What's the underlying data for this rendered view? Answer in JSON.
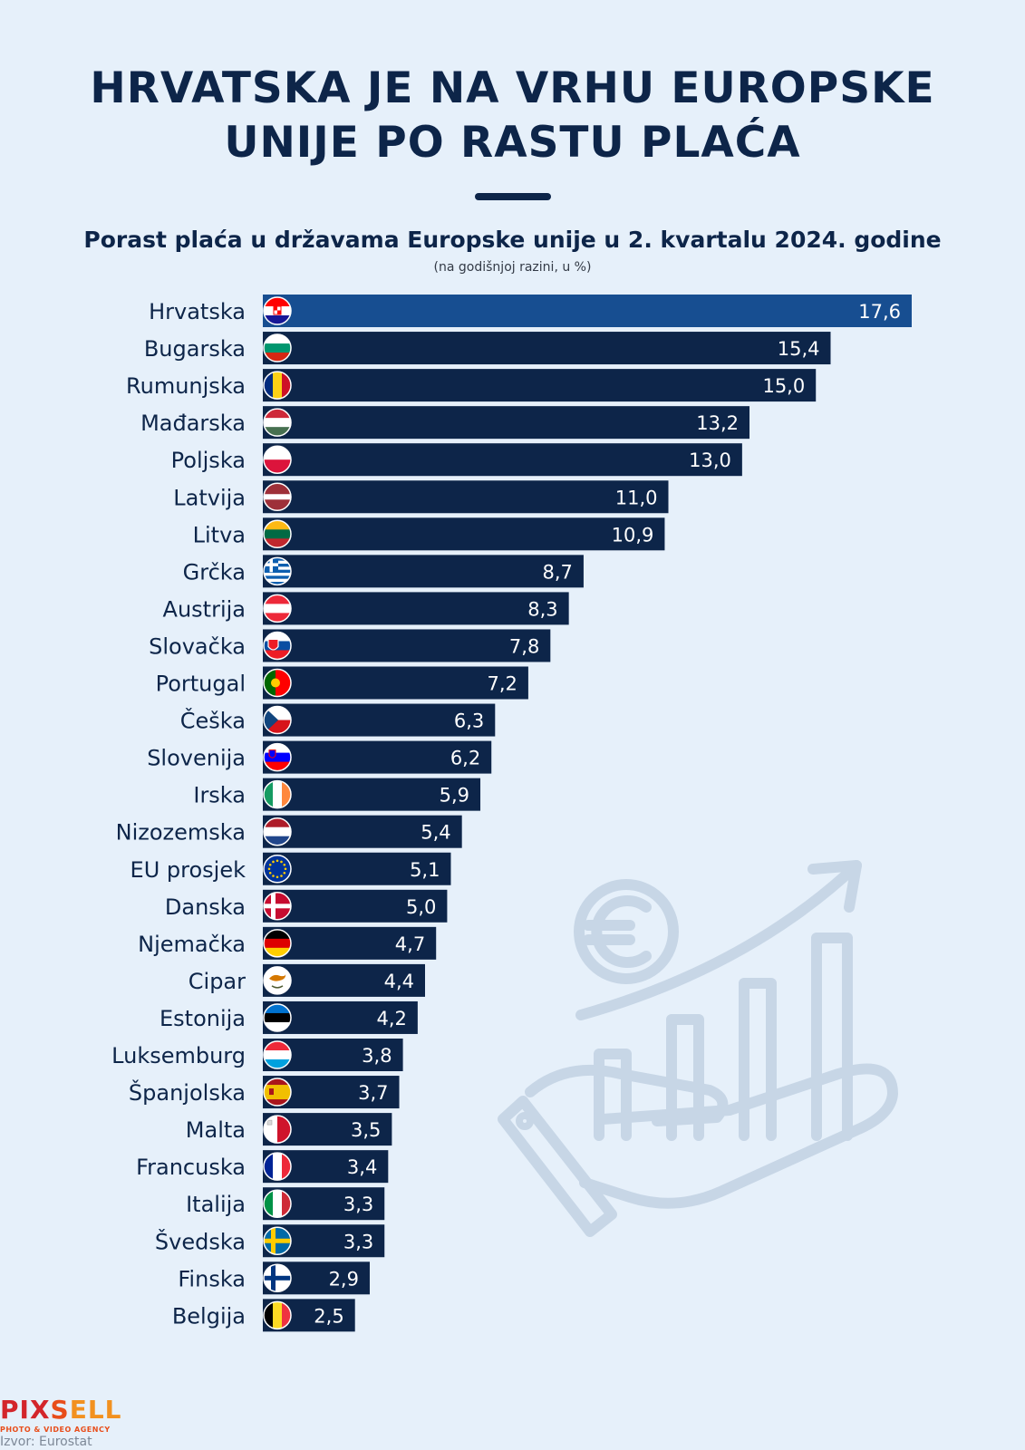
{
  "title_line1": "HRVATSKA JE NA VRHU EUROPSKE",
  "title_line2": "UNIJE PO RASTU PLAĆA",
  "subtitle": "Porast plaća u državama Europske unije u 2. kvartalu 2024. godine",
  "note": "(na godišnjoj razini, u %)",
  "logo": {
    "part1": "PIX",
    "part2": "S",
    "part3": "ELL",
    "tagline": "PHOTO & VIDEO AGENCY"
  },
  "source": "Izvor: Eurostat",
  "colors": {
    "background": "#e6f0fa",
    "bar": "#0d2549",
    "highlight": "#174e91",
    "title": "#0d2549",
    "decoration": "#c7d6e6"
  },
  "decoration_icon": "euro-growth-hand-icon",
  "chart_data": {
    "type": "bar",
    "orientation": "horizontal",
    "categories": [
      "Hrvatska",
      "Bugarska",
      "Rumunjska",
      "Mađarska",
      "Poljska",
      "Latvija",
      "Litva",
      "Grčka",
      "Austrija",
      "Slovačka",
      "Portugal",
      "Češka",
      "Slovenija",
      "Irska",
      "Nizozemska",
      "EU prosjek",
      "Danska",
      "Njemačka",
      "Cipar",
      "Estonija",
      "Luksemburg",
      "Španjolska",
      "Malta",
      "Francuska",
      "Italija",
      "Švedska",
      "Finska",
      "Belgija"
    ],
    "values": [
      17.6,
      15.4,
      15.0,
      13.2,
      13.0,
      11.0,
      10.9,
      8.7,
      8.3,
      7.8,
      7.2,
      6.3,
      6.2,
      5.9,
      5.4,
      5.1,
      5.0,
      4.7,
      4.4,
      4.2,
      3.8,
      3.7,
      3.5,
      3.4,
      3.3,
      3.3,
      2.9,
      2.5
    ],
    "value_labels": [
      "17,6",
      "15,4",
      "15,0",
      "13,2",
      "13,0",
      "11,0",
      "10,9",
      "8,7",
      "8,3",
      "7,8",
      "7,2",
      "6,3",
      "6,2",
      "5,9",
      "5,4",
      "5,1",
      "5,0",
      "4,7",
      "4,4",
      "4,2",
      "3,8",
      "3,7",
      "3,5",
      "3,4",
      "3,3",
      "3,3",
      "2,9",
      "2,5"
    ],
    "flags": [
      "hr",
      "bg",
      "ro",
      "hu",
      "pl",
      "lv",
      "lt",
      "gr",
      "at",
      "sk",
      "pt",
      "cz",
      "si",
      "ie",
      "nl",
      "eu",
      "dk",
      "de",
      "cy",
      "ee",
      "lu",
      "es",
      "mt",
      "fr",
      "it",
      "se",
      "fi",
      "be"
    ],
    "highlight": "Hrvatska",
    "xlim": [
      0,
      17.6
    ],
    "grid": false,
    "legend": "none"
  }
}
